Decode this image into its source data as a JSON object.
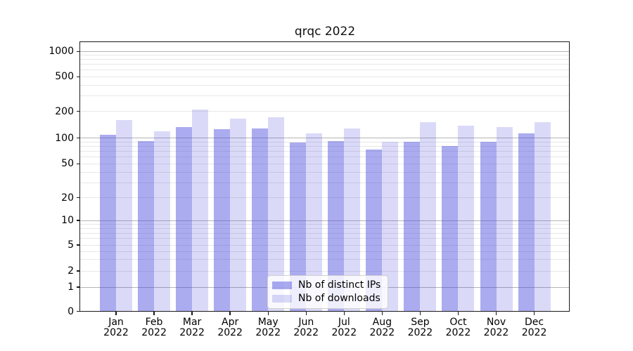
{
  "chart_data": {
    "type": "bar",
    "title": "qrqc 2022",
    "categories": [
      "Jan 2022",
      "Feb 2022",
      "Mar 2022",
      "Apr 2022",
      "May 2022",
      "Jun 2022",
      "Jul 2022",
      "Aug 2022",
      "Sep 2022",
      "Oct 2022",
      "Nov 2022",
      "Dec 2022"
    ],
    "series": [
      {
        "name": "Nb of distinct IPs",
        "color": "rgba(68,68,221,0.45)",
        "values": [
          108,
          93,
          133,
          125,
          128,
          88,
          92,
          73,
          91,
          80,
          90,
          113
        ]
      },
      {
        "name": "Nb of downloads",
        "color": "rgba(68,68,221,0.2)",
        "values": [
          160,
          120,
          211,
          165,
          171,
          112,
          128,
          91,
          150,
          138,
          134,
          150
        ]
      }
    ],
    "yscale": "symlog",
    "yticks": [
      0,
      1,
      2,
      5,
      10,
      20,
      50,
      100,
      200,
      500,
      1000
    ],
    "ylim": [
      0,
      1300
    ],
    "grid": true,
    "legend_position": "lower center"
  },
  "colors": {
    "bar_primary": "rgba(68,68,221,0.45)",
    "bar_secondary": "rgba(68,68,221,0.2)",
    "grid_major": "#b4b4b4",
    "grid_minor": "#e7e7e7",
    "spine": "#1a1a1a",
    "text": "#000000"
  }
}
